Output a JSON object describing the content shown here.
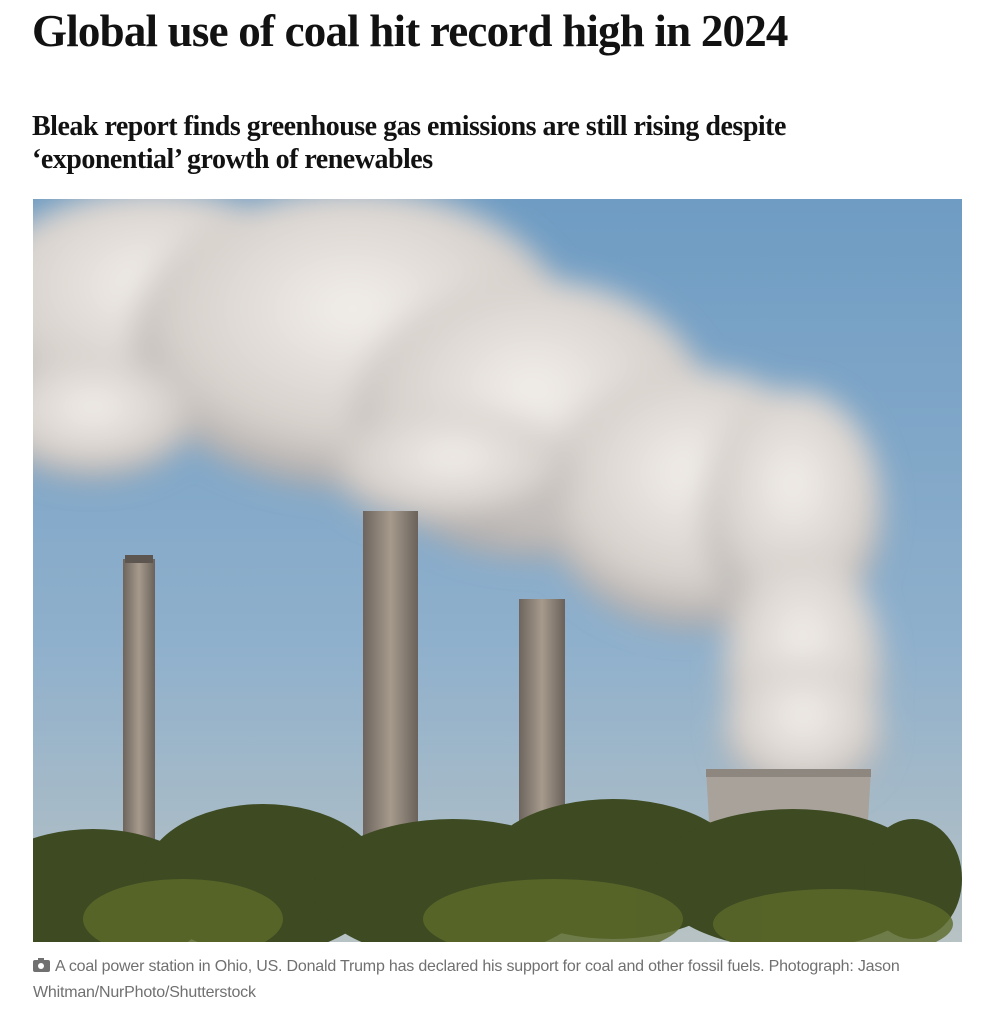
{
  "article": {
    "headline": "Global use of coal hit record high in 2024",
    "standfirst": "Bleak report finds greenhouse gas emissions are still rising despite ‘exponential’ growth of renewables",
    "image": {
      "description_icon": "camera-icon",
      "caption": "A coal power station in Ohio, US. Donald Trump has declared his support for coal and other fossil fuels. Photograph: Jason Whitman/NurPhoto/Shutterstock"
    }
  }
}
